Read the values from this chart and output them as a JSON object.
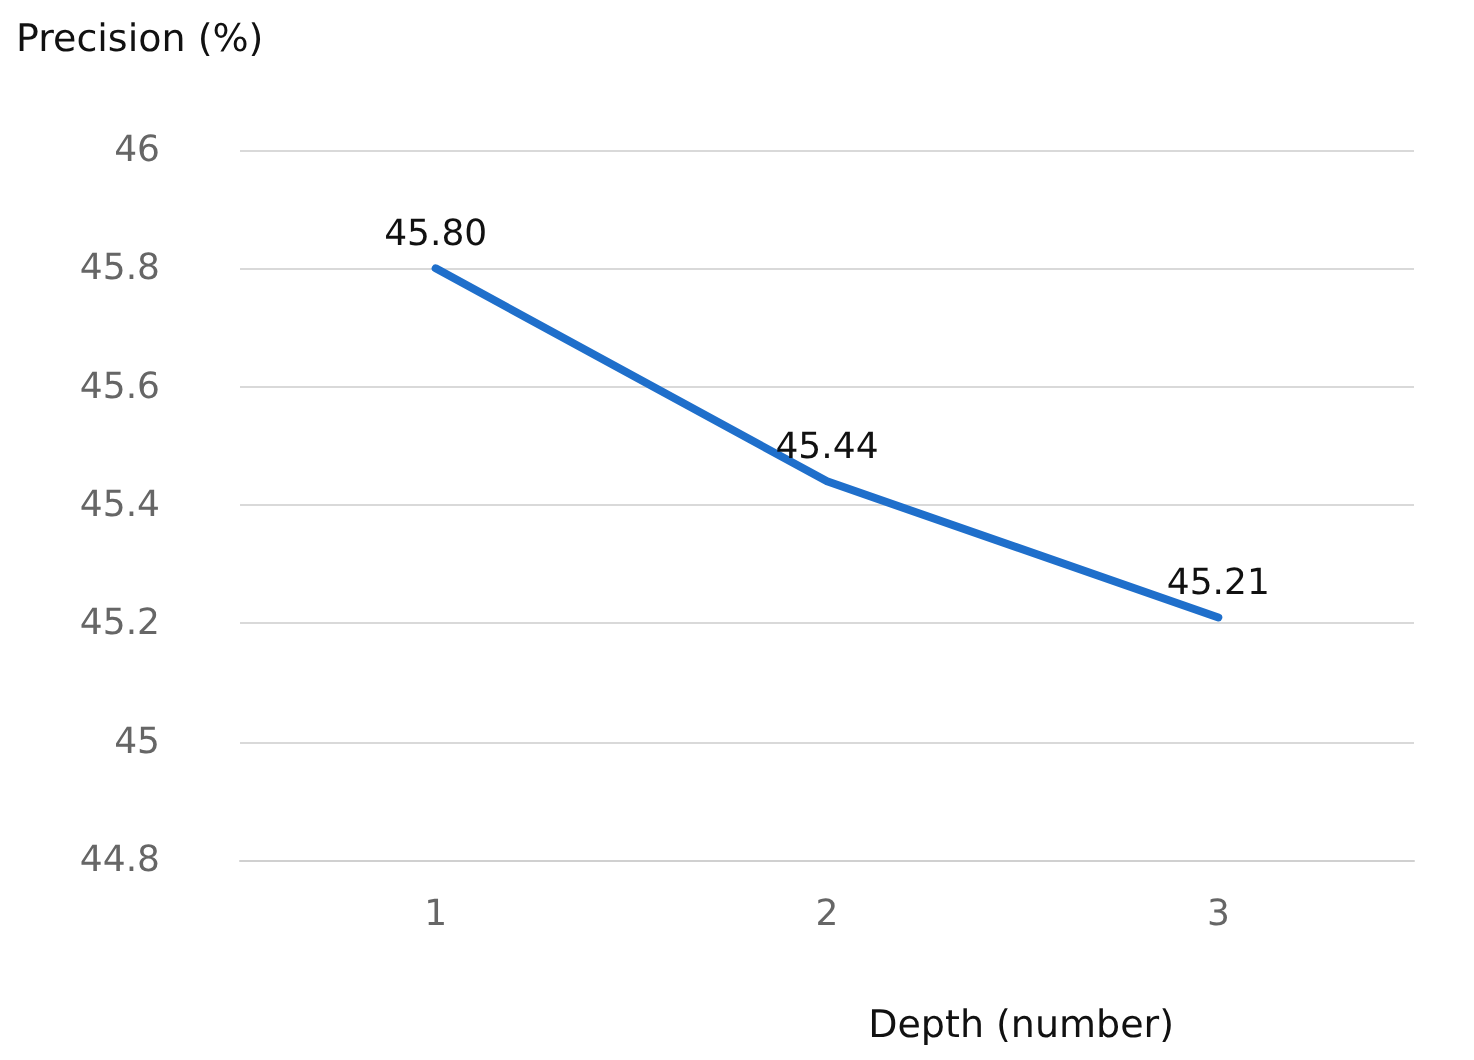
{
  "chart_data": {
    "type": "line",
    "ylabel": "Precision (%)",
    "xlabel": "Depth (number)",
    "categories": [
      "1",
      "2",
      "3"
    ],
    "series": [
      {
        "color": "#1f6fcb",
        "values": [
          45.8,
          45.44,
          45.21
        ],
        "value_labels": [
          "45.80",
          "45.44",
          "45.21"
        ]
      }
    ],
    "ylim": [
      44.8,
      46
    ],
    "yticks": [
      44.8,
      45,
      45.2,
      45.4,
      45.6,
      45.8,
      46
    ],
    "grid": "y",
    "marker": "none",
    "line_style": "solid"
  }
}
